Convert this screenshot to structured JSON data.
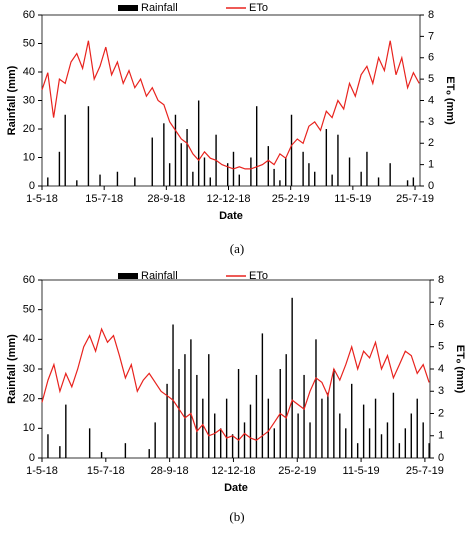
{
  "chart_data": [
    {
      "type": "bar-line",
      "caption": "(a)",
      "x_label": "Date",
      "y_label": "Rainfall (mm)",
      "y2_label": "ETₒ (mm)",
      "legend": "top",
      "x": [
        0,
        7,
        14,
        21,
        28,
        35,
        42,
        49,
        56,
        63,
        70,
        77,
        84,
        91,
        98,
        105,
        112,
        119,
        126,
        133,
        140,
        147,
        154,
        161,
        168,
        175,
        182,
        189,
        196,
        203,
        210,
        217,
        224,
        231,
        238,
        245,
        252,
        259,
        266,
        273,
        280,
        287,
        294,
        301,
        308,
        315,
        322,
        329,
        336,
        343,
        350,
        357,
        364,
        371,
        378,
        385,
        392,
        399,
        406,
        413,
        420,
        427,
        434,
        441,
        448,
        455
      ],
      "xlim": [
        0,
        456
      ],
      "xticks": [
        {
          "value": 0,
          "label": "1-5-18"
        },
        {
          "value": 75,
          "label": "15-7-18"
        },
        {
          "value": 150,
          "label": "28-9-18"
        },
        {
          "value": 225,
          "label": "12-12-18"
        },
        {
          "value": 300,
          "label": "25-2-19"
        },
        {
          "value": 375,
          "label": "11-5-19"
        },
        {
          "value": 450,
          "label": "25-7-19"
        }
      ],
      "ylim": [
        0,
        60
      ],
      "yticks": [
        0,
        10,
        20,
        30,
        40,
        50,
        60
      ],
      "y2lim": [
        0,
        8
      ],
      "y2ticks": [
        0,
        1,
        2,
        3,
        4,
        5,
        6,
        7,
        8
      ],
      "series": [
        {
          "name": "Rainfall",
          "type": "bar",
          "axis": "y",
          "color": "#000000",
          "values": [
            0,
            3,
            0,
            12,
            25,
            0,
            2,
            0,
            28,
            0,
            4,
            0,
            0,
            5,
            0,
            0,
            3,
            0,
            0,
            17,
            0,
            22,
            8,
            25,
            15,
            20,
            5,
            30,
            10,
            3,
            18,
            0,
            8,
            12,
            4,
            0,
            10,
            28,
            0,
            14,
            6,
            2,
            10,
            25,
            0,
            12,
            8,
            5,
            0,
            20,
            4,
            18,
            0,
            10,
            0,
            5,
            12,
            0,
            3,
            0,
            8,
            0,
            0,
            2,
            3,
            0
          ]
        },
        {
          "name": "ETo",
          "type": "line",
          "axis": "y2",
          "color": "#e8231e",
          "values": [
            4.5,
            5.3,
            3.2,
            5.0,
            4.8,
            5.8,
            6.2,
            5.5,
            6.8,
            5.0,
            5.6,
            6.5,
            5.2,
            5.8,
            4.8,
            5.4,
            4.6,
            5.0,
            4.2,
            4.6,
            4.0,
            3.8,
            3.0,
            2.6,
            2.2,
            2.0,
            1.5,
            1.2,
            1.6,
            1.3,
            1.2,
            1.0,
            0.9,
            0.8,
            0.9,
            0.8,
            0.8,
            0.9,
            1.0,
            1.2,
            1.0,
            1.5,
            1.3,
            1.9,
            2.2,
            2.0,
            2.8,
            3.0,
            2.6,
            3.5,
            3.2,
            4.0,
            3.6,
            4.8,
            4.2,
            5.2,
            5.6,
            4.8,
            6.0,
            5.4,
            6.8,
            5.2,
            6.0,
            4.6,
            5.3,
            4.8
          ]
        }
      ]
    },
    {
      "type": "bar-line",
      "caption": "(b)",
      "x_label": "Date",
      "y_label": "Rainfall (mm)",
      "y2_label": "ETₒ (mm)",
      "legend": "top",
      "x": [
        0,
        7,
        14,
        21,
        28,
        35,
        42,
        49,
        56,
        63,
        70,
        77,
        84,
        91,
        98,
        105,
        112,
        119,
        126,
        133,
        140,
        147,
        154,
        161,
        168,
        175,
        182,
        189,
        196,
        203,
        210,
        217,
        224,
        231,
        238,
        245,
        252,
        259,
        266,
        273,
        280,
        287,
        294,
        301,
        308,
        315,
        322,
        329,
        336,
        343,
        350,
        357,
        364,
        371,
        378,
        385,
        392,
        399,
        406,
        413,
        420,
        427,
        434,
        441,
        448,
        455
      ],
      "xlim": [
        0,
        456
      ],
      "xticks": [
        {
          "value": 0,
          "label": "1-5-18"
        },
        {
          "value": 75,
          "label": "15-7-18"
        },
        {
          "value": 150,
          "label": "28-9-18"
        },
        {
          "value": 225,
          "label": "12-12-18"
        },
        {
          "value": 300,
          "label": "25-2-19"
        },
        {
          "value": 375,
          "label": "11-5-19"
        },
        {
          "value": 450,
          "label": "25-7-19"
        }
      ],
      "ylim": [
        0,
        60
      ],
      "yticks": [
        0,
        10,
        20,
        30,
        40,
        50,
        60
      ],
      "y2lim": [
        0,
        8
      ],
      "y2ticks": [
        0,
        1,
        2,
        3,
        4,
        5,
        6,
        7,
        8
      ],
      "series": [
        {
          "name": "Rainfall",
          "type": "bar",
          "axis": "y",
          "color": "#000000",
          "values": [
            0,
            8,
            0,
            4,
            18,
            0,
            0,
            0,
            10,
            0,
            2,
            0,
            0,
            0,
            5,
            0,
            0,
            0,
            3,
            12,
            0,
            25,
            45,
            30,
            35,
            40,
            28,
            20,
            35,
            15,
            10,
            20,
            8,
            30,
            12,
            18,
            28,
            42,
            20,
            10,
            30,
            35,
            54,
            15,
            28,
            12,
            40,
            20,
            22,
            30,
            15,
            10,
            25,
            5,
            18,
            10,
            20,
            8,
            12,
            22,
            5,
            10,
            15,
            20,
            12,
            5
          ]
        },
        {
          "name": "ETo",
          "type": "line",
          "axis": "y2",
          "color": "#e8231e",
          "values": [
            2.5,
            3.5,
            4.2,
            3.0,
            3.8,
            3.2,
            4.0,
            5.0,
            5.5,
            4.8,
            5.8,
            5.2,
            5.5,
            4.6,
            3.6,
            4.2,
            3.0,
            3.5,
            3.8,
            3.4,
            3.0,
            2.8,
            2.6,
            2.2,
            1.8,
            2.0,
            1.2,
            1.5,
            1.0,
            1.1,
            1.3,
            0.9,
            1.0,
            0.8,
            1.1,
            0.9,
            0.8,
            1.0,
            1.2,
            1.6,
            2.0,
            1.8,
            2.6,
            2.4,
            2.2,
            3.0,
            3.6,
            3.4,
            2.8,
            4.0,
            3.5,
            4.2,
            5.0,
            4.0,
            4.8,
            4.5,
            5.2,
            4.0,
            4.6,
            3.6,
            4.2,
            4.8,
            4.6,
            3.8,
            4.2,
            3.4
          ]
        }
      ]
    }
  ]
}
